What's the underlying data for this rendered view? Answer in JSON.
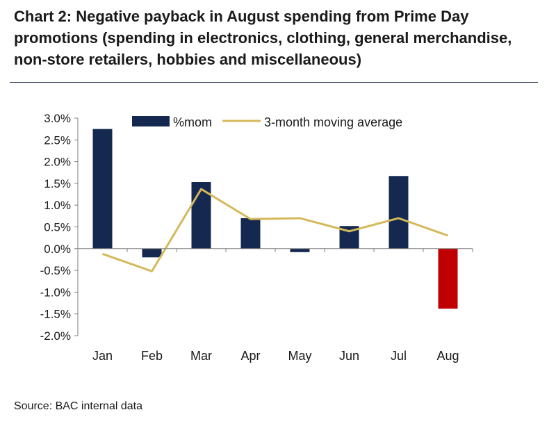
{
  "title": "Chart 2: Negative payback in August spending from Prime Day promotions (spending in electronics, clothing, general merchandise, non-store retailers, hobbies and miscellaneous)",
  "source": "Source: BAC internal data",
  "chart_data": {
    "type": "bar",
    "title": "Chart 2: Negative payback in August spending from Prime Day promotions (spending in electronics, clothing, general merchandise, non-store retailers, hobbies and miscellaneous)",
    "xlabel": "",
    "ylabel": "",
    "categories": [
      "Jan",
      "Feb",
      "Mar",
      "Apr",
      "May",
      "Jun",
      "Jul",
      "Aug"
    ],
    "ylim": [
      -2.0,
      3.0
    ],
    "yticks": [
      -2.0,
      -1.5,
      -1.0,
      -0.5,
      0.0,
      0.5,
      1.0,
      1.5,
      2.0,
      2.5,
      3.0
    ],
    "ytick_labels": [
      "-2.0%",
      "-1.5%",
      "-1.0%",
      "-0.5%",
      "0.0%",
      "0.5%",
      "1.0%",
      "1.5%",
      "2.0%",
      "2.5%",
      "3.0%"
    ],
    "grid": false,
    "legend_position": "top",
    "series": [
      {
        "name": "%mom",
        "kind": "bar",
        "color": "#142850",
        "highlight_color": "#c00000",
        "values": [
          2.75,
          -0.2,
          1.53,
          0.7,
          -0.08,
          0.52,
          1.67,
          -1.38
        ]
      },
      {
        "name": "3-month moving average",
        "kind": "line",
        "color": "#d4b85a",
        "values": [
          -0.12,
          -0.52,
          1.37,
          0.68,
          0.7,
          0.4,
          0.7,
          0.3
        ]
      }
    ]
  }
}
